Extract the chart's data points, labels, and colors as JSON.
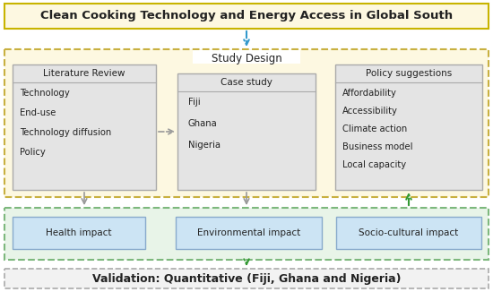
{
  "title": "Clean Cooking Technology and Energy Access in Global South",
  "validation_text": "Validation: Quantitative (Fiji, Ghana and Nigeria)",
  "study_design_label": "Study Design",
  "lit_review_title": "Literature Review",
  "lit_review_items": [
    "Technology",
    "End-use",
    "Technology diffusion",
    "Policy"
  ],
  "case_study_title": "Case study",
  "case_study_items": [
    "Fiji",
    "Ghana",
    "Nigeria"
  ],
  "policy_title": "Policy suggestions",
  "policy_items": [
    "Affordability",
    "Accessibility",
    "Climate action",
    "Business model",
    "Local capacity"
  ],
  "impact_boxes": [
    "Health impact",
    "Environmental impact",
    "Socio-cultural impact"
  ],
  "colors": {
    "title_bg": "#fdf8e1",
    "title_border": "#c8b400",
    "title_text": "#000000",
    "study_design_bg": "#fdf8e1",
    "study_design_border": "#c8b040",
    "inner_box_bg": "#e4e4e4",
    "inner_box_border": "#aaaaaa",
    "impact_section_bg": "#e8f4e8",
    "impact_section_border": "#7db87d",
    "impact_box_bg": "#cce4f4",
    "impact_box_border": "#88aacc",
    "validation_bg": "#f2f2f2",
    "validation_border": "#aaaaaa",
    "arrow_blue": "#3399cc",
    "arrow_gray": "#999999",
    "arrow_green": "#339933"
  },
  "fig_width": 5.5,
  "fig_height": 3.26,
  "dpi": 100
}
